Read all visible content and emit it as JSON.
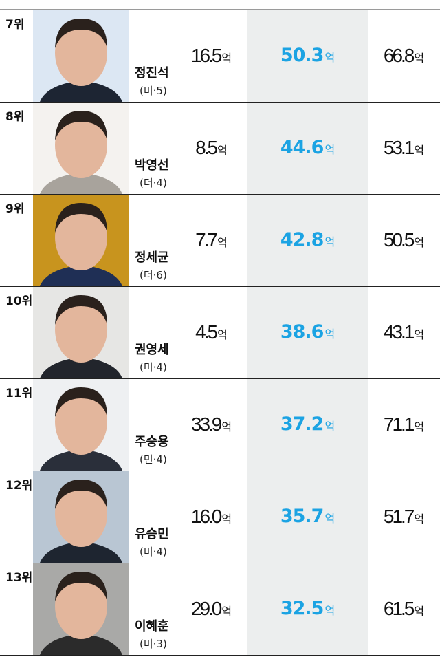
{
  "unit": "억",
  "rows": [
    {
      "rank": "7위",
      "name": "정진석",
      "party": "(미·5)",
      "v1": "16.5",
      "v2": "50.3",
      "v3": "66.8",
      "photo_bg": "#dce7f3",
      "suit": "#1d2533"
    },
    {
      "rank": "8위",
      "name": "박영선",
      "party": "(더·4)",
      "v1": "8.5",
      "v2": "44.6",
      "v3": "53.1",
      "photo_bg": "#f4f2ef",
      "suit": "#a8a39c"
    },
    {
      "rank": "9위",
      "name": "정세균",
      "party": "(더·6)",
      "v1": "7.7",
      "v2": "42.8",
      "v3": "50.5",
      "photo_bg": "#c8941e",
      "suit": "#1f2f55"
    },
    {
      "rank": "10위",
      "name": "권영세",
      "party": "(미·4)",
      "v1": "4.5",
      "v2": "38.6",
      "v3": "43.1",
      "photo_bg": "#e6e6e4",
      "suit": "#22252c"
    },
    {
      "rank": "11위",
      "name": "주승용",
      "party": "(민·4)",
      "v1": "33.9",
      "v2": "37.2",
      "v3": "71.1",
      "photo_bg": "#eef0f2",
      "suit": "#2a2f3a"
    },
    {
      "rank": "12위",
      "name": "유승민",
      "party": "(미·4)",
      "v1": "16.0",
      "v2": "35.7",
      "v3": "51.7",
      "photo_bg": "#b9c6d3",
      "suit": "#1e2530"
    },
    {
      "rank": "13위",
      "name": "이혜훈",
      "party": "(미·3)",
      "v1": "29.0",
      "v2": "32.5",
      "v3": "61.5",
      "photo_bg": "#a9a9a7",
      "suit": "#2b2b2b"
    }
  ],
  "colors": {
    "highlight": "#1ba3e3",
    "highlight_column_bg": "#eceeee"
  }
}
